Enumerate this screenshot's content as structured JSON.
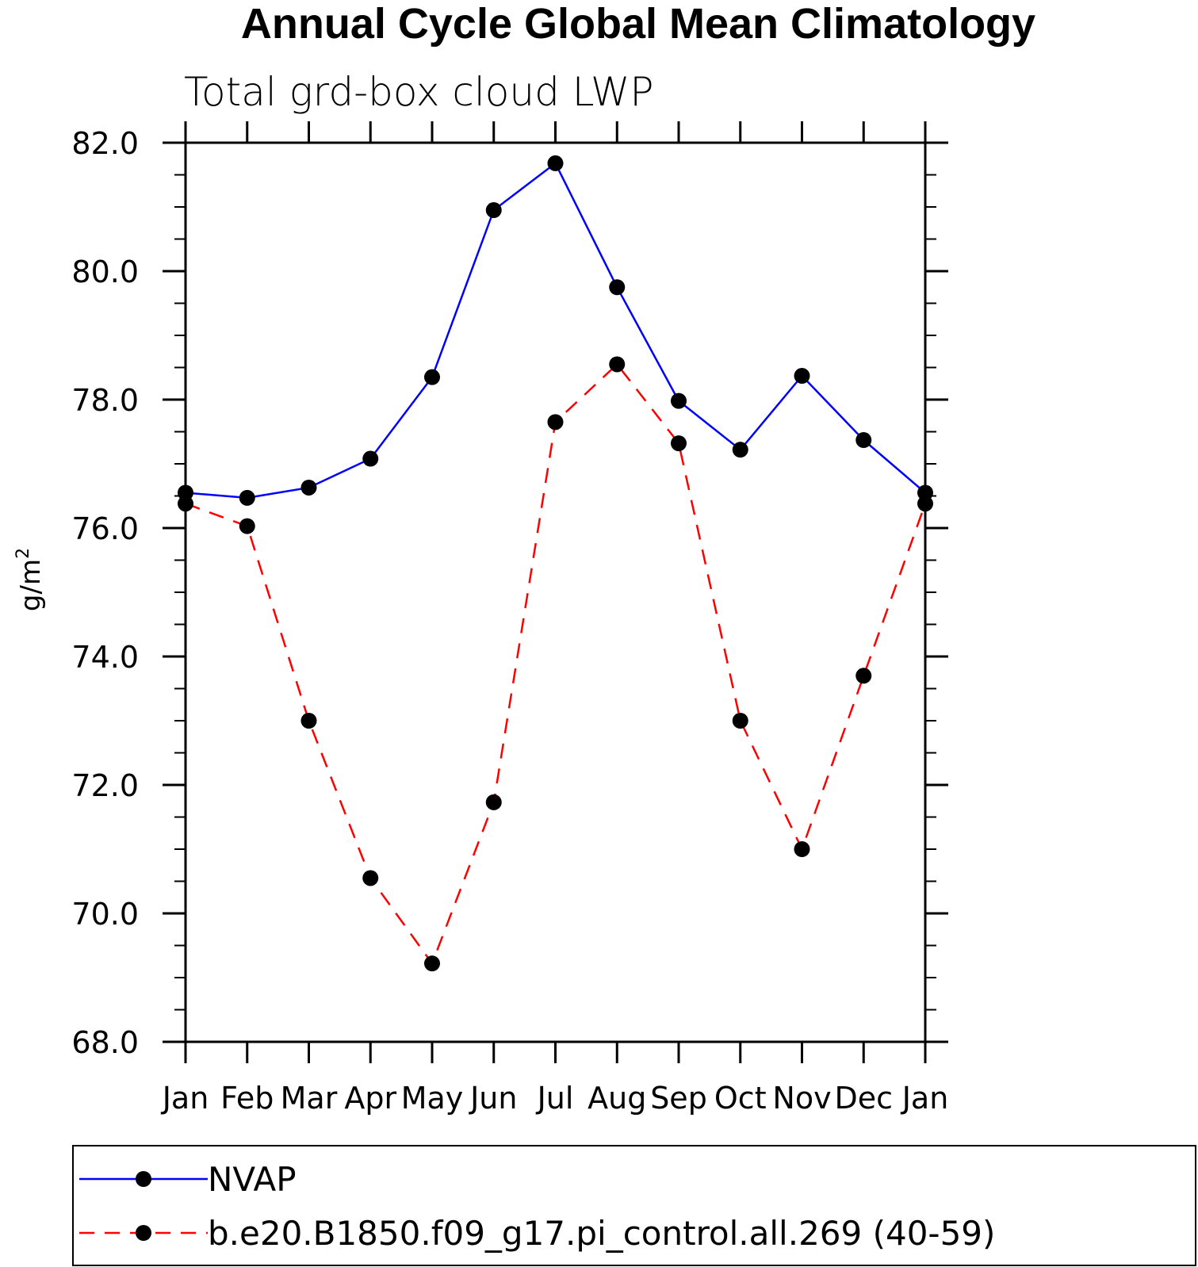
{
  "chart_data": {
    "type": "line",
    "title": "Annual Cycle Global Mean Climatology",
    "subtitle": "Total grd-box cloud LWP",
    "ylabel": "g/m",
    "ylabel_superscript": "2",
    "xlabel": "",
    "categories": [
      "Jan",
      "Feb",
      "Mar",
      "Apr",
      "May",
      "Jun",
      "Jul",
      "Aug",
      "Sep",
      "Oct",
      "Nov",
      "Dec",
      "Jan"
    ],
    "ylim": [
      68.0,
      82.0
    ],
    "yticks": [
      "68.0",
      "70.0",
      "72.0",
      "74.0",
      "76.0",
      "78.0",
      "80.0",
      "82.0"
    ],
    "grid": false,
    "legend_position": "bottom",
    "series": [
      {
        "name": "NVAP",
        "color": "#0000ff",
        "dash": "solid",
        "marker": "filled-circle",
        "values": [
          76.55,
          76.47,
          76.63,
          77.08,
          78.35,
          80.95,
          81.68,
          79.75,
          77.98,
          77.22,
          78.37,
          77.37,
          76.55
        ]
      },
      {
        "name": "b.e20.B1850.f09_g17.pi_control.all.269 (40-59)",
        "color": "#ff0000",
        "dash": "dashed",
        "marker": "filled-circle",
        "values": [
          76.38,
          76.03,
          73.0,
          70.55,
          69.22,
          71.73,
          77.65,
          78.55,
          77.32,
          73.0,
          71.0,
          73.7,
          76.38
        ]
      }
    ]
  }
}
